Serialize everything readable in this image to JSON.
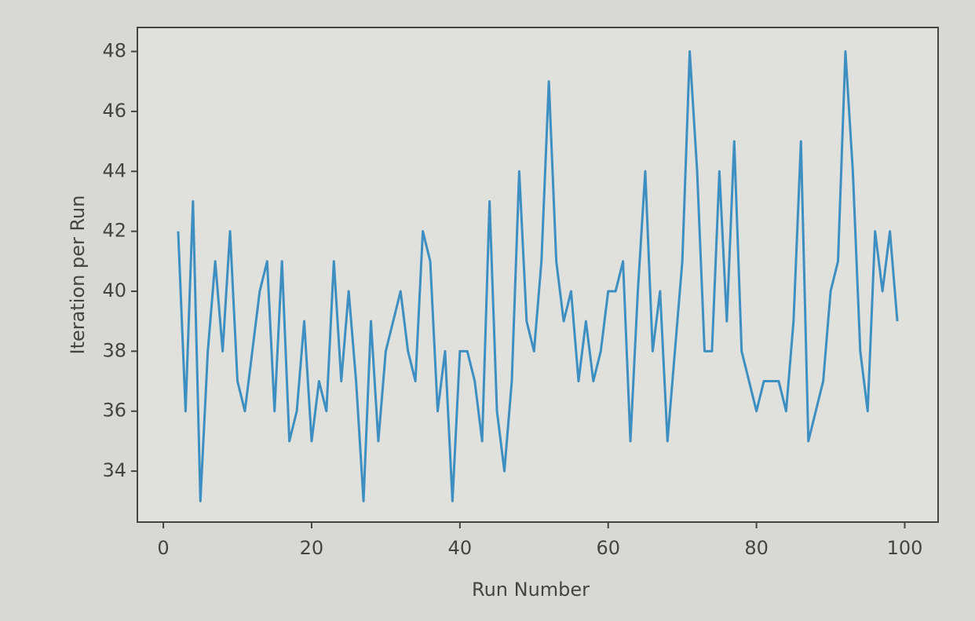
{
  "chart_data": {
    "type": "line",
    "xlabel": "Run Number",
    "ylabel": "Iteration per Run",
    "x": [
      2,
      3,
      4,
      5,
      6,
      7,
      8,
      9,
      10,
      11,
      12,
      13,
      14,
      15,
      16,
      17,
      18,
      19,
      20,
      21,
      22,
      23,
      24,
      25,
      26,
      27,
      28,
      29,
      30,
      31,
      32,
      33,
      34,
      35,
      36,
      37,
      38,
      39,
      40,
      41,
      42,
      43,
      44,
      45,
      46,
      47,
      48,
      49,
      50,
      51,
      52,
      53,
      54,
      55,
      56,
      57,
      58,
      59,
      60,
      61,
      62,
      63,
      64,
      65,
      66,
      67,
      68,
      69,
      70,
      71,
      72,
      73,
      74,
      75,
      76,
      77,
      78,
      79,
      80,
      81,
      82,
      83,
      84,
      85,
      86,
      87,
      88,
      89,
      90,
      91,
      92,
      93,
      94,
      95,
      96,
      97,
      98,
      99
    ],
    "series": [
      {
        "color": "#3d8fc2",
        "values": [
          42,
          36,
          43,
          33,
          38,
          41,
          38,
          42,
          37,
          36,
          38,
          40,
          41,
          36,
          41,
          35,
          36,
          39,
          35,
          37,
          36,
          41,
          37,
          40,
          37,
          33,
          39,
          35,
          38,
          39,
          40,
          38,
          37,
          42,
          41,
          36,
          38,
          33,
          38,
          38,
          37,
          35,
          43,
          36,
          34,
          37,
          44,
          39,
          38,
          41,
          47,
          41,
          39,
          40,
          37,
          39,
          37,
          38,
          40,
          40,
          41,
          35,
          40,
          44,
          38,
          40,
          35,
          38,
          41,
          48,
          44,
          38,
          38,
          44,
          39,
          45,
          38,
          37,
          36,
          37,
          37,
          37,
          36,
          39,
          45,
          35,
          36,
          37,
          40,
          41,
          48,
          44,
          38,
          36,
          42,
          40,
          42,
          39
        ]
      }
    ],
    "xlim": [
      -3.5,
      104.5
    ],
    "xticks": [
      0,
      20,
      40,
      60,
      80,
      100
    ],
    "ylim": [
      32.3,
      48.8
    ],
    "yticks": [
      34,
      36,
      38,
      40,
      42,
      44,
      46,
      48
    ]
  }
}
